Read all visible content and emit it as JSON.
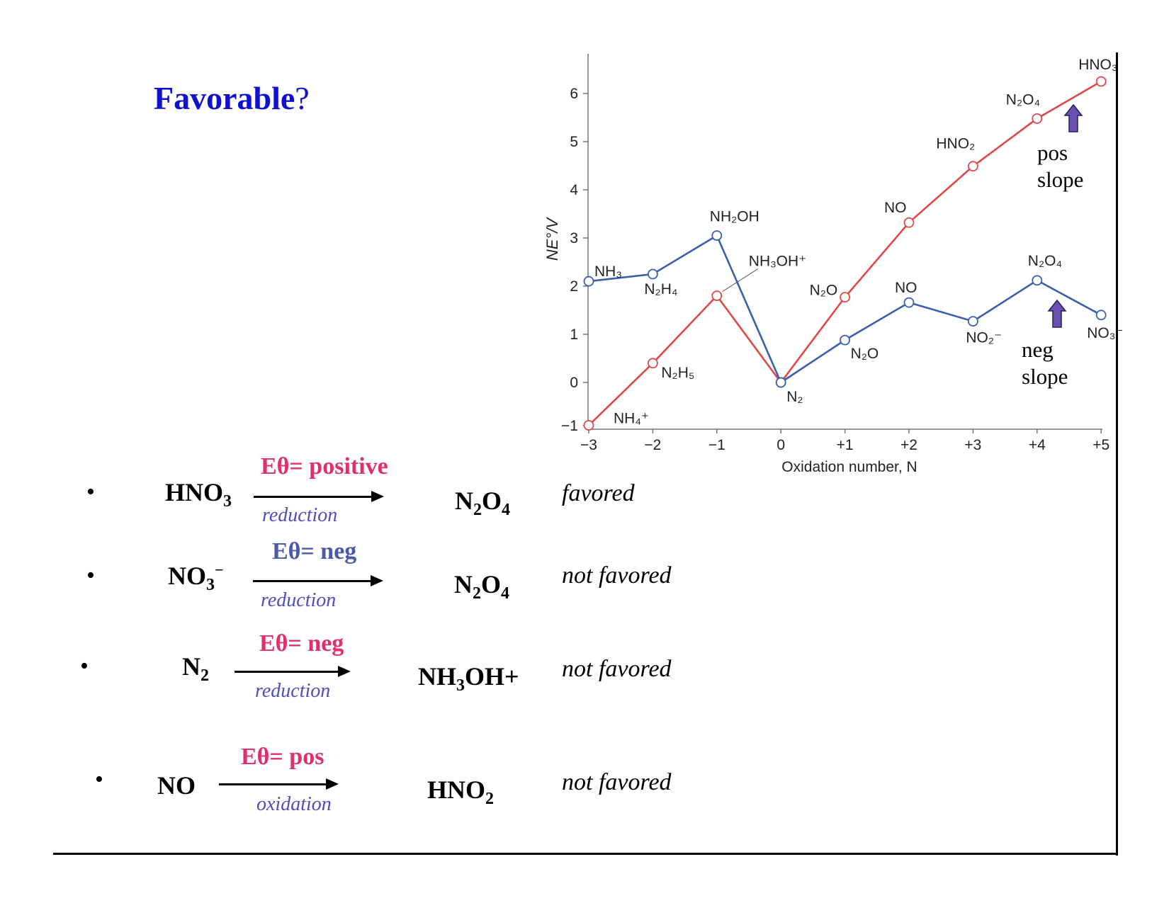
{
  "title": {
    "word": "Favorable",
    "mark": "?"
  },
  "colors": {
    "red": "#e04848",
    "blue": "#3a5fb0",
    "title_blue": "#1010d0",
    "pink": "#e0306a",
    "eblue": "#4a5aa8",
    "arrow_purple": "#6a50b0"
  },
  "chart_data": {
    "type": "line",
    "xlabel": "Oxidation number, N",
    "ylabel": "NE°/V",
    "xlim": [
      -3,
      5
    ],
    "ylim": [
      -1,
      6.5
    ],
    "x_ticks": [
      "−3",
      "−2",
      "−1",
      "0",
      "+1",
      "+2",
      "+3",
      "+4",
      "+5"
    ],
    "y_ticks": [
      "−1",
      "0",
      "1",
      "2",
      "3",
      "4",
      "5",
      "6"
    ],
    "series": [
      {
        "color": "#e04848",
        "points": [
          {
            "x": -3,
            "y": -0.89,
            "label": "NH₄⁺"
          },
          {
            "x": -2,
            "y": 0.4,
            "label": "N₂H₅"
          },
          {
            "x": -1,
            "y": 1.8,
            "label": "NH₃OH⁺"
          },
          {
            "x": 0,
            "y": 0,
            "label": "N₂"
          },
          {
            "x": 1,
            "y": 1.77,
            "label": "N₂O"
          },
          {
            "x": 2,
            "y": 3.32,
            "label": "NO"
          },
          {
            "x": 3,
            "y": 4.49,
            "label": "HNO₂"
          },
          {
            "x": 4,
            "y": 5.48,
            "label": "N₂O₄"
          },
          {
            "x": 5,
            "y": 6.25,
            "label": "HNO₃"
          }
        ]
      },
      {
        "color": "#3a5fb0",
        "points": [
          {
            "x": -3,
            "y": 2.1,
            "label": "NH₃"
          },
          {
            "x": -2,
            "y": 2.25,
            "label": "N₂H₄"
          },
          {
            "x": -1,
            "y": 3.05,
            "label": "NH₂OH"
          },
          {
            "x": 0,
            "y": 0,
            "label": "N₂"
          },
          {
            "x": 1,
            "y": 0.88,
            "label": "N₂O"
          },
          {
            "x": 2,
            "y": 1.66,
            "label": "NO"
          },
          {
            "x": 3,
            "y": 1.27,
            "label": "NO₂⁻"
          },
          {
            "x": 4,
            "y": 2.12,
            "label": "N₂O₄"
          },
          {
            "x": 5,
            "y": 1.4,
            "label": "NO₃⁻"
          }
        ]
      }
    ],
    "annotations": [
      {
        "text1": "pos",
        "text2": "slope"
      },
      {
        "text1": "neg",
        "text2": "slope"
      }
    ]
  },
  "rows": [
    {
      "bullet": "•",
      "from": "HNO",
      "from_sub": "3",
      "from_sup": "",
      "e_label": "Eθ= positive",
      "e_color": "#e0306a",
      "process": "reduction",
      "to": "N",
      "to_sub": "2",
      "to_mid": "O",
      "to_sub2": "4",
      "to_tail": "",
      "verdict": "favored"
    },
    {
      "bullet": "•",
      "from": "NO",
      "from_sub": "3",
      "from_sup": "−",
      "e_label": "Eθ= neg",
      "e_color": "#4a5aa8",
      "process": "reduction",
      "to": "N",
      "to_sub": "2",
      "to_mid": "O",
      "to_sub2": "4",
      "to_tail": "",
      "verdict": "not favored"
    },
    {
      "bullet": "•",
      "from": "N",
      "from_sub": "2",
      "from_sup": "",
      "e_label": "Eθ= neg",
      "e_color": "#e0306a",
      "process": "reduction",
      "to": "NH",
      "to_sub": "3",
      "to_mid": "OH+",
      "to_sub2": "",
      "to_tail": "",
      "verdict": "not favored"
    },
    {
      "bullet": "•",
      "from": "NO",
      "from_sub": "",
      "from_sup": "",
      "e_label": "Eθ= pos",
      "e_color": "#e0306a",
      "process": "oxidation",
      "to": "HNO",
      "to_sub": "2",
      "to_mid": "",
      "to_sub2": "",
      "to_tail": "",
      "verdict": "not favored"
    }
  ]
}
